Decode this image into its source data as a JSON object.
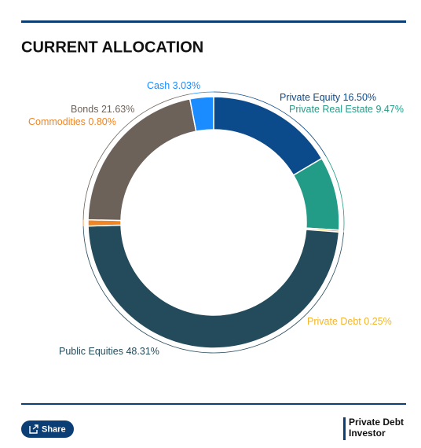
{
  "chart_data": {
    "type": "donut",
    "title": "CURRENT ALLOCATION",
    "categories": [
      "Private Equity",
      "Private Real Estate",
      "Private Debt",
      "Public Equities",
      "Commodities",
      "Bonds",
      "Cash"
    ],
    "values": [
      16.5,
      9.47,
      0.25,
      48.31,
      0.8,
      21.63,
      3.03
    ],
    "value_labels": [
      "16.50%",
      "9.47%",
      "0.25%",
      "48.31%",
      "0.80%",
      "21.63%",
      "3.03%"
    ],
    "colors": [
      "#0b4a8b",
      "#239c87",
      "#f3b52a",
      "#244b5b",
      "#f08524",
      "#6d625a",
      "#1a8cff"
    ]
  },
  "footer": {
    "share": "Share",
    "logo": [
      "Private Debt",
      "Investor"
    ]
  }
}
